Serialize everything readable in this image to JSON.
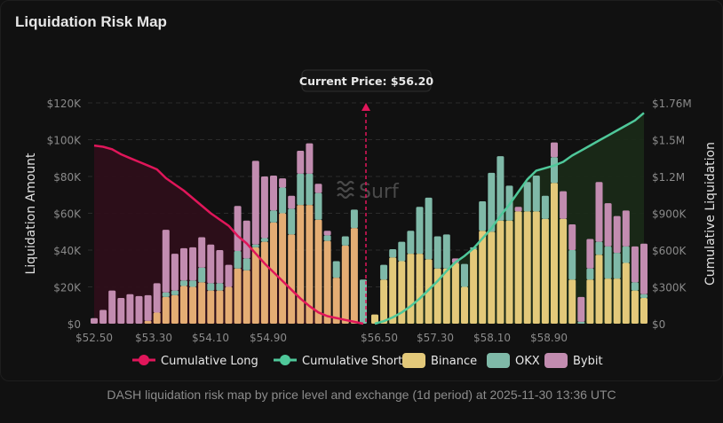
{
  "title": "Liquidation Risk Map",
  "caption": "DASH liquidation risk map by price level and exchange (1d period) at 2025-11-30 13:36 UTC",
  "watermark": "Surf",
  "current_price_label": "Current Price: $56.20",
  "colors": {
    "cumulative_long": "#e0165a",
    "cumulative_short": "#4fc89a",
    "binance": "#e3c97a",
    "binance_left": "#e4ad74",
    "okx": "#7fb9a8",
    "bybit": "#c28cb0",
    "long_fill": "#2e0f1a",
    "short_fill": "#1a2a18"
  },
  "chart_data": {
    "type": "bar",
    "title": "Liquidation Risk Map",
    "xlabel": "",
    "ylabel": "Liquidation Amount",
    "y2label": "Cumulative Liquidation",
    "ylim": [
      0,
      120000
    ],
    "y2lim": [
      0,
      1760000
    ],
    "yticks": [
      "$0",
      "$20K",
      "$40K",
      "$60K",
      "$80K",
      "$100K",
      "$120K"
    ],
    "y2ticks": [
      "$0",
      "$300K",
      "$600K",
      "$900K",
      "$1.2M",
      "$1.5M",
      "$1.76M"
    ],
    "xticks": [
      "$52.50",
      "$53.30",
      "$54.10",
      "$54.90",
      "$56.50",
      "$57.30",
      "$58.10",
      "$58.90"
    ],
    "current_price": 56.2,
    "legend": [
      "Cumulative Long",
      "Cumulative Short",
      "Binance",
      "OKX",
      "Bybit"
    ],
    "legend_position": "bottom",
    "grid": true,
    "long_side": {
      "prices": [
        52.5,
        52.6,
        52.7,
        52.8,
        52.9,
        53.0,
        53.1,
        53.2,
        53.3,
        53.4,
        53.5,
        53.6,
        53.7,
        53.8,
        53.9,
        54.0,
        54.1,
        54.2,
        54.3,
        54.4,
        54.5,
        54.6,
        54.7,
        54.8,
        54.9,
        55.0,
        55.1,
        55.2,
        55.3,
        55.4,
        55.5
      ],
      "binance": [
        0,
        0,
        0,
        0,
        0,
        0,
        1500,
        6000,
        14500,
        15500,
        20500,
        20000,
        22500,
        18000,
        18000,
        20000,
        30000,
        29000,
        41500,
        44500,
        55000,
        60000,
        48500,
        64500,
        64500,
        56500,
        45000,
        25000,
        42500,
        52000,
        0
      ],
      "okx": [
        0,
        0,
        0,
        0,
        0,
        0,
        0,
        0,
        2500,
        2500,
        3000,
        3500,
        8000,
        4000,
        4000,
        0,
        9500,
        6500,
        1500,
        2000,
        6500,
        14000,
        14000,
        17000,
        17000,
        14500,
        3000,
        9000,
        5000,
        10000,
        24000
      ],
      "bybit": [
        3000,
        7500,
        18000,
        14000,
        16000,
        15000,
        14000,
        16000,
        34000,
        20000,
        17500,
        18000,
        16500,
        21000,
        18000,
        12000,
        24500,
        20500,
        45500,
        33500,
        19000,
        5000,
        7000,
        12500,
        16500,
        5000,
        2500,
        0,
        0,
        0,
        0
      ],
      "cumulative_long": [
        1420000,
        1410000,
        1390000,
        1350000,
        1320000,
        1290000,
        1260000,
        1230000,
        1160000,
        1110000,
        1060000,
        1000000,
        940000,
        880000,
        830000,
        780000,
        700000,
        640000,
        560000,
        480000,
        410000,
        340000,
        270000,
        200000,
        140000,
        90000,
        60000,
        45000,
        30000,
        15000,
        0
      ]
    },
    "short_side": {
      "prices": [
        56.3,
        56.4,
        56.5,
        56.6,
        56.7,
        56.8,
        56.9,
        57.0,
        57.1,
        57.2,
        57.3,
        57.4,
        57.5,
        57.6,
        57.7,
        57.8,
        57.9,
        58.0,
        58.1,
        58.2,
        58.3,
        58.4,
        58.5,
        58.6,
        58.7,
        58.8,
        58.9,
        59.0,
        59.1,
        59.2,
        59.3
      ],
      "binance": [
        5000,
        24000,
        36000,
        34000,
        38000,
        38000,
        35000,
        30000,
        30000,
        33000,
        20000,
        40500,
        50500,
        50000,
        56000,
        56000,
        61000,
        61000,
        61000,
        57000,
        76500,
        57000,
        24000,
        0,
        24000,
        37500,
        24500,
        24500,
        33000,
        18000,
        14000
      ],
      "okx": [
        0,
        8000,
        4500,
        10500,
        12500,
        25500,
        33500,
        17500,
        18500,
        0,
        12500,
        1000,
        16000,
        32000,
        35000,
        19000,
        0,
        16000,
        19500,
        12500,
        14000,
        0,
        16000,
        1000,
        6000,
        7000,
        17500,
        14000,
        9000,
        4500,
        2000
      ],
      "bybit": [
        0,
        0,
        0,
        0,
        0,
        0,
        0,
        0,
        0,
        2500,
        0,
        0,
        0,
        0,
        0,
        0,
        2500,
        0,
        0,
        0,
        8000,
        15000,
        14000,
        13500,
        16000,
        32500,
        23500,
        20000,
        19500,
        19500,
        27500
      ],
      "cumulative_short": [
        0,
        20000,
        50000,
        90000,
        140000,
        200000,
        270000,
        340000,
        420000,
        490000,
        540000,
        600000,
        680000,
        760000,
        860000,
        950000,
        1050000,
        1150000,
        1220000,
        1240000,
        1260000,
        1290000,
        1340000,
        1380000,
        1420000,
        1460000,
        1500000,
        1540000,
        1580000,
        1620000,
        1680000
      ]
    }
  }
}
